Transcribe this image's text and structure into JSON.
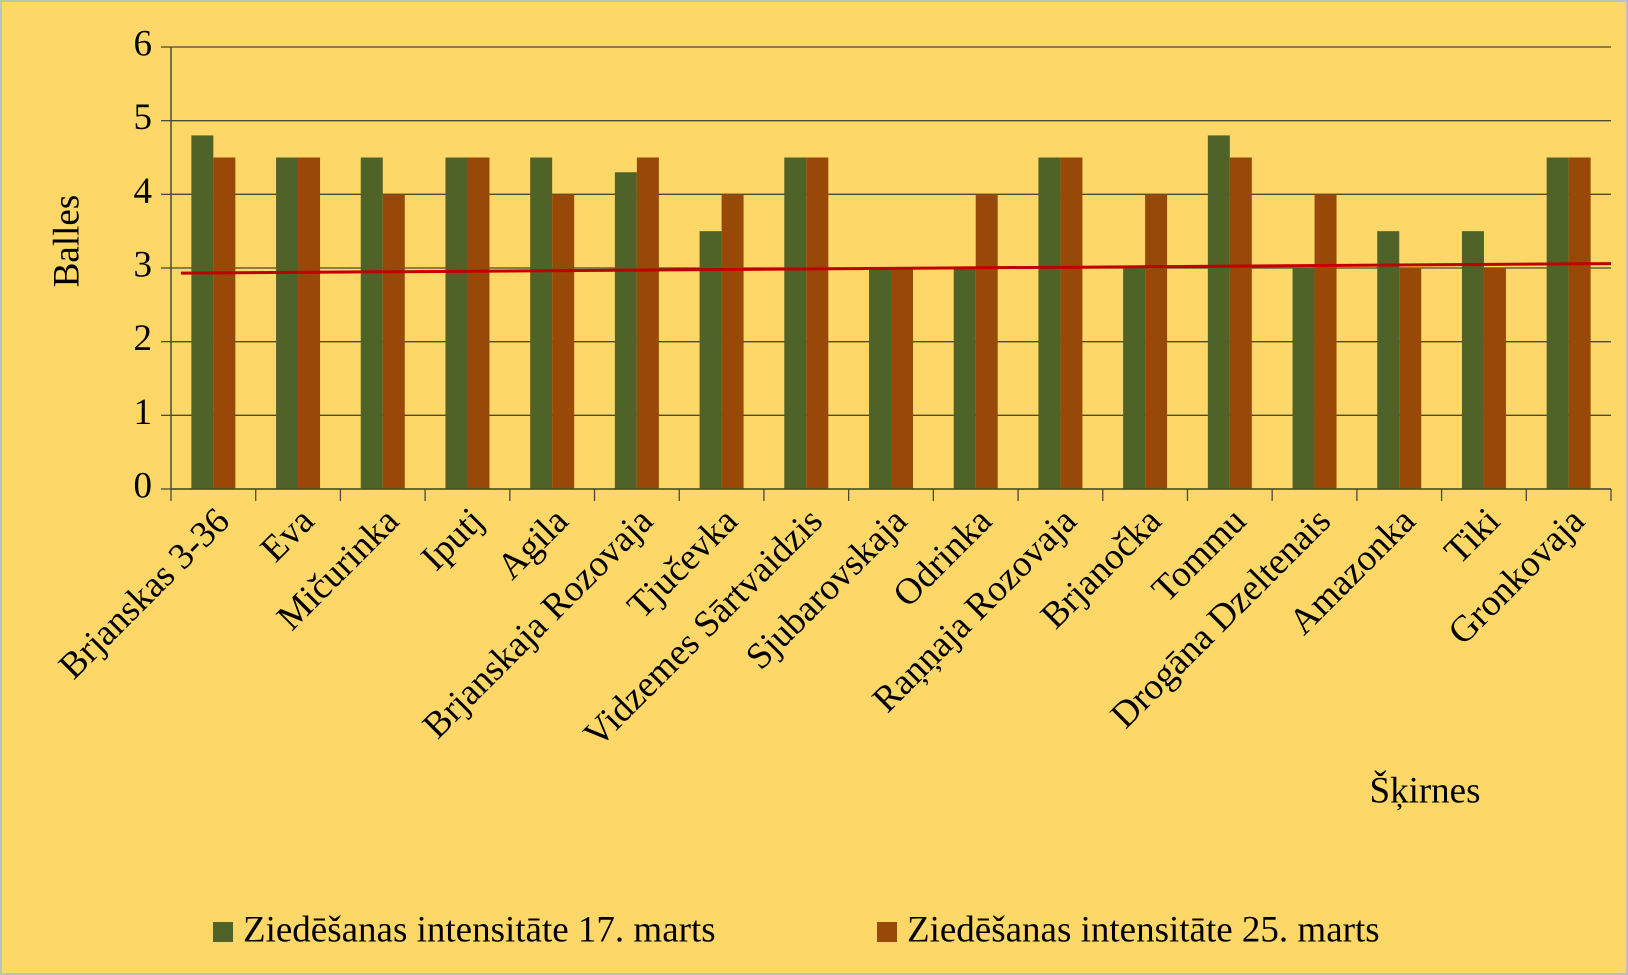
{
  "chart_data": {
    "type": "bar",
    "categories": [
      "Brjanskas 3-36",
      "Eva",
      "Mičurinka",
      "Iputj",
      "Agila",
      "Brjanskaja Rozovaja",
      "Tjučevka",
      "Vidzemes Sārtvaidzis",
      "Sjubarovskaja",
      "Odrinka",
      "Raņņaja Rozovaja",
      "Brjanočka",
      "Tommu",
      "Drogāna Dzeltenais",
      "Amazonka",
      "Tiki",
      "Gronkovaja"
    ],
    "series": [
      {
        "name": "Ziedēšanas intensitāte 17. marts",
        "color": "#4f6228",
        "values": [
          4.8,
          4.5,
          4.5,
          4.5,
          4.5,
          4.3,
          3.5,
          4.5,
          3,
          3,
          4.5,
          3,
          4.8,
          3,
          3.5,
          3.5,
          4.5
        ]
      },
      {
        "name": "Ziedēšanas intensitāte 25. marts",
        "color": "#984807",
        "values": [
          4.5,
          4.5,
          4,
          4.5,
          4,
          4.5,
          4,
          4.5,
          3,
          4,
          4.5,
          4,
          4.5,
          4,
          3,
          3,
          4.5
        ]
      }
    ],
    "trendline": {
      "color": "#c00000",
      "values": [
        2.93,
        3.06
      ]
    },
    "y_label": "Balles",
    "x_label": "Šķirnes",
    "ylim": [
      0,
      6
    ],
    "yticks": [
      0,
      1,
      2,
      3,
      4,
      5,
      6
    ],
    "grid": true
  }
}
